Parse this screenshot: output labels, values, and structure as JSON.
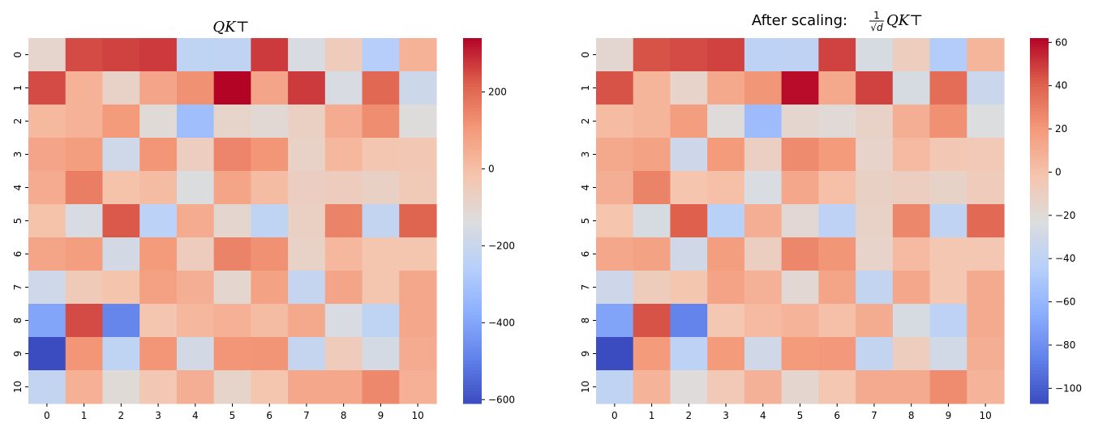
{
  "chart_data": [
    {
      "type": "heatmap",
      "title": "QK⊤",
      "x_tick_labels": [
        "0",
        "1",
        "2",
        "3",
        "4",
        "5",
        "6",
        "7",
        "8",
        "9",
        "10"
      ],
      "y_tick_labels": [
        "0",
        "1",
        "2",
        "3",
        "4",
        "5",
        "6",
        "7",
        "8",
        "9",
        "10"
      ],
      "colormap": "coolwarm",
      "vmin": -610,
      "vmax": 340,
      "colorbar_ticks": [
        200,
        0,
        -200,
        -400,
        -600
      ],
      "colorbar_tick_labels": [
        "200",
        "0",
        "−200",
        "−400",
        "−600"
      ],
      "values": [
        [
          -95,
          250,
          260,
          270,
          -230,
          -225,
          270,
          -150,
          -50,
          -260,
          35
        ],
        [
          250,
          35,
          -80,
          70,
          120,
          340,
          70,
          270,
          -150,
          205,
          -190
        ],
        [
          15,
          35,
          100,
          -120,
          -320,
          -90,
          -110,
          -70,
          55,
          130,
          -130
        ],
        [
          70,
          90,
          -180,
          110,
          -60,
          145,
          110,
          -80,
          20,
          -25,
          -30
        ],
        [
          55,
          160,
          -10,
          5,
          -140,
          75,
          5,
          -65,
          -55,
          -75,
          -40
        ],
        [
          -10,
          -150,
          230,
          -240,
          55,
          -100,
          -230,
          -70,
          150,
          -220,
          210
        ],
        [
          75,
          90,
          -170,
          100,
          -55,
          150,
          120,
          -80,
          20,
          -20,
          -20
        ],
        [
          -180,
          -45,
          -15,
          85,
          45,
          -100,
          80,
          -210,
          75,
          -20,
          65
        ],
        [
          -400,
          250,
          -480,
          -20,
          20,
          40,
          5,
          60,
          -150,
          -230,
          65
        ],
        [
          -610,
          110,
          -230,
          110,
          -170,
          110,
          115,
          -210,
          -50,
          -165,
          55
        ],
        [
          -220,
          40,
          -120,
          -30,
          45,
          -90,
          -20,
          65,
          65,
          140,
          40
        ]
      ]
    },
    {
      "type": "heatmap",
      "title": "After scaling: (1/√d) QK⊤",
      "title_prefix": "After scaling: ",
      "title_frac_num": "1",
      "title_frac_den": "√d",
      "title_suffix": "QK⊤",
      "x_tick_labels": [
        "0",
        "1",
        "2",
        "3",
        "4",
        "5",
        "6",
        "7",
        "8",
        "9",
        "10"
      ],
      "y_tick_labels": [
        "0",
        "1",
        "2",
        "3",
        "4",
        "5",
        "6",
        "7",
        "8",
        "9",
        "10"
      ],
      "colormap": "coolwarm",
      "vmin": -107,
      "vmax": 62,
      "colorbar_ticks": [
        60,
        40,
        20,
        0,
        -20,
        -40,
        -60,
        -80,
        -100
      ],
      "colorbar_tick_labels": [
        "60",
        "40",
        "20",
        "0",
        "−20",
        "−40",
        "−60",
        "−80",
        "−100"
      ],
      "values": [
        [
          -16.8,
          44.2,
          46.0,
          47.7,
          -40.7,
          -39.8,
          47.7,
          -26.5,
          -8.8,
          -46.0,
          6.2
        ],
        [
          44.2,
          6.2,
          -14.1,
          12.4,
          21.2,
          60.1,
          12.4,
          47.7,
          -26.5,
          36.2,
          -33.6
        ],
        [
          2.7,
          6.2,
          17.7,
          -21.2,
          -56.6,
          -15.9,
          -19.4,
          -12.4,
          9.7,
          23.0,
          -23.0
        ],
        [
          12.4,
          15.9,
          -31.8,
          19.4,
          -10.6,
          25.6,
          19.4,
          -14.1,
          3.5,
          -4.4,
          -5.3
        ],
        [
          9.7,
          28.3,
          -1.8,
          0.9,
          -24.7,
          13.3,
          0.9,
          -11.5,
          -9.7,
          -13.3,
          -7.1
        ],
        [
          -1.8,
          -26.5,
          40.7,
          -42.4,
          9.7,
          -17.7,
          -40.7,
          -12.4,
          26.5,
          -38.9,
          37.1
        ],
        [
          13.3,
          15.9,
          -30.1,
          17.7,
          -9.7,
          26.5,
          21.2,
          -14.1,
          3.5,
          -3.5,
          -3.5
        ],
        [
          -31.8,
          -8.0,
          -2.7,
          15.0,
          8.0,
          -17.7,
          14.1,
          -37.1,
          13.3,
          -3.5,
          11.5
        ],
        [
          -70.7,
          44.2,
          -84.9,
          -3.5,
          3.5,
          7.1,
          0.9,
          10.6,
          -26.5,
          -40.7,
          11.5
        ],
        [
          -107.8,
          19.4,
          -40.7,
          19.4,
          -30.1,
          19.4,
          20.3,
          -37.1,
          -8.8,
          -29.2,
          9.7
        ],
        [
          -38.9,
          7.1,
          -21.2,
          -5.3,
          8.0,
          -15.9,
          -3.5,
          11.5,
          11.5,
          24.7,
          7.1
        ]
      ]
    }
  ]
}
